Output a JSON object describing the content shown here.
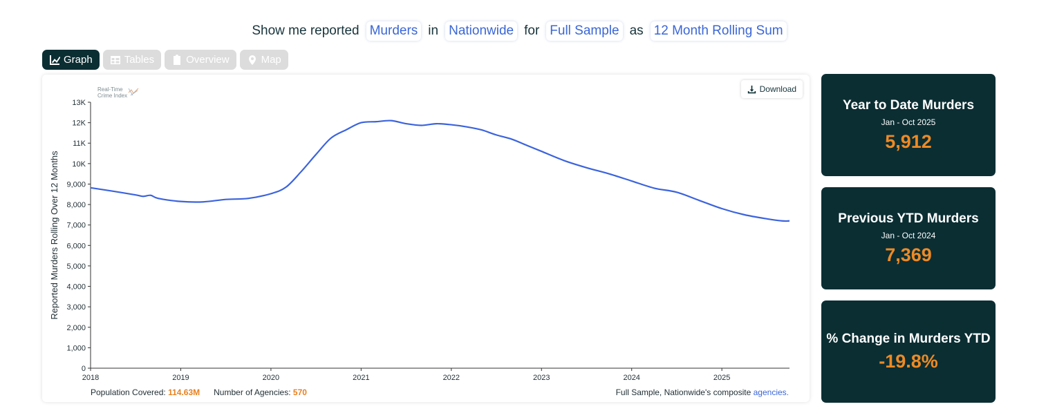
{
  "query": {
    "prefix": "Show me reported",
    "crime": "Murders",
    "in": "in",
    "region": "Nationwide",
    "for": "for",
    "sample": "Full Sample",
    "as": "as",
    "metric": "12 Month Rolling Sum"
  },
  "tabs": [
    {
      "label": "Graph",
      "icon": "chart-line-icon",
      "active": true
    },
    {
      "label": "Tables",
      "icon": "table-icon",
      "active": false
    },
    {
      "label": "Overview",
      "icon": "clipboard-icon",
      "active": false
    },
    {
      "label": "Map",
      "icon": "map-pin-icon",
      "active": false
    }
  ],
  "logo": {
    "line1": "Real-Time",
    "line2": "Crime Index"
  },
  "download_label": "Download",
  "footer": {
    "population_label": "Population Covered:",
    "population_value": "114.63M",
    "agencies_label": "Number of Agencies:",
    "agencies_value": "570",
    "note_text": "Full Sample, Nationwide's composite",
    "note_link": "agencies."
  },
  "stats": [
    {
      "title": "Year to Date Murders",
      "sub": "Jan - Oct 2025",
      "value": "5,912"
    },
    {
      "title": "Previous YTD Murders",
      "sub": "Jan - Oct 2024",
      "value": "7,369"
    },
    {
      "title": "% Change in Murders YTD",
      "sub": "",
      "value": "-19.8%"
    }
  ],
  "colors": {
    "line": "#3b63dc",
    "accent": "#ee8a24",
    "panel": "#0b2e33"
  },
  "chart_data": {
    "type": "line",
    "ylabel": "Reported Murders Rolling Over 12 Months",
    "xlabel": "",
    "ylim": [
      0,
      13000
    ],
    "yticks": [
      0,
      1000,
      2000,
      3000,
      4000,
      5000,
      6000,
      7000,
      8000,
      9000,
      10000,
      11000,
      12000,
      13000
    ],
    "ytick_labels": [
      "0",
      "1,000",
      "2,000",
      "3,000",
      "4,000",
      "5,000",
      "6,000",
      "7,000",
      "8,000",
      "9,000",
      "10K",
      "11K",
      "12K",
      "13K"
    ],
    "xlim": [
      2018.0,
      2025.75
    ],
    "xticks": [
      2018,
      2019,
      2020,
      2021,
      2022,
      2023,
      2024,
      2025
    ],
    "xtick_labels": [
      "2018",
      "2019",
      "2020",
      "2021",
      "2022",
      "2023",
      "2024",
      "2025"
    ],
    "grid": false,
    "series": [
      {
        "x": [
          2018.0,
          2018.25,
          2018.5,
          2018.5833,
          2018.6667,
          2018.75,
          2019.0,
          2019.25,
          2019.5,
          2019.75,
          2020.0,
          2020.1667,
          2020.3333,
          2020.5,
          2020.6667,
          2020.8333,
          2021.0,
          2021.1667,
          2021.3333,
          2021.5,
          2021.6667,
          2021.8333,
          2022.0,
          2022.1667,
          2022.3333,
          2022.5,
          2022.6667,
          2022.8333,
          2023.0,
          2023.25,
          2023.5,
          2023.75,
          2024.0,
          2024.25,
          2024.5,
          2024.75,
          2025.0,
          2025.25,
          2025.5,
          2025.6667,
          2025.75
        ],
        "y": [
          8820,
          8650,
          8470,
          8400,
          8450,
          8300,
          8150,
          8130,
          8250,
          8300,
          8530,
          8850,
          9600,
          10450,
          11250,
          11650,
          12000,
          12050,
          12100,
          11950,
          11870,
          11950,
          11900,
          11800,
          11650,
          11400,
          11200,
          10900,
          10600,
          10150,
          9800,
          9500,
          9150,
          8800,
          8600,
          8200,
          7800,
          7500,
          7300,
          7200,
          7200
        ]
      }
    ]
  }
}
